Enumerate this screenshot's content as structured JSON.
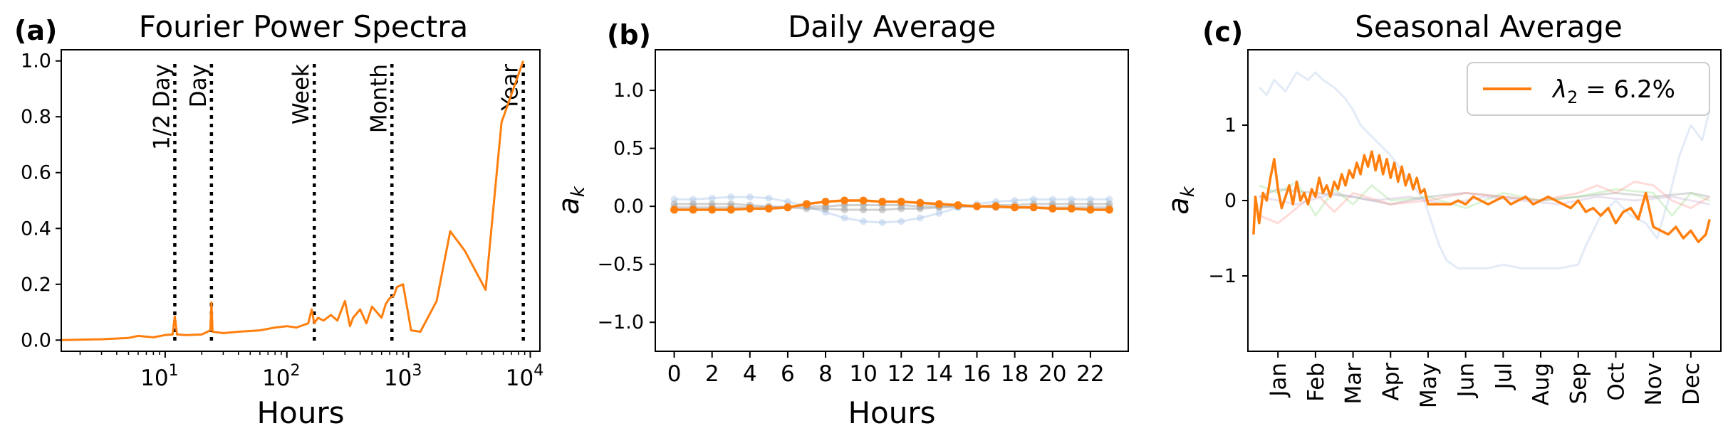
{
  "colors": {
    "orange": "#ff7f0e",
    "accent_orange": "#f4741b",
    "faint_blue": "#aec7e8",
    "faint_gray": "#9a9a9a",
    "faint_green": "#98df8a",
    "faint_red": "#ff9896",
    "faint_purple": "#c5b0d5"
  },
  "chart_data": [
    {
      "type": "line",
      "panel_label": "(a)",
      "title": "Fourier Power Spectra",
      "xlabel": "Hours",
      "ylabel": "",
      "xscale": "log",
      "xlim": [
        1.4,
        12000
      ],
      "ylim": [
        -0.04,
        1.04
      ],
      "xticks": [
        10,
        100,
        1000,
        10000
      ],
      "xtick_labels": [
        {
          "base": "10",
          "exp": "1"
        },
        {
          "base": "10",
          "exp": "2"
        },
        {
          "base": "10",
          "exp": "3"
        },
        {
          "base": "10",
          "exp": "4"
        }
      ],
      "yticks": [
        0,
        0.2,
        0.4,
        0.6,
        0.8,
        1.0
      ],
      "ytick_labels": [
        "0.0",
        "0.2",
        "0.4",
        "0.6",
        "0.8",
        "1.0"
      ],
      "markers": [
        {
          "label": "1/2 Day",
          "x": 12
        },
        {
          "label": "Day",
          "x": 24
        },
        {
          "label": "Week",
          "x": 168
        },
        {
          "label": "Month",
          "x": 730
        },
        {
          "label": "Year",
          "x": 8760
        }
      ],
      "series": [
        {
          "x": [
            1.4,
            3,
            5,
            6,
            8,
            10,
            11.5,
            12,
            12.5,
            15,
            20,
            23.5,
            24,
            24.5,
            30,
            40,
            60,
            80,
            100,
            120,
            150,
            160,
            168,
            180,
            200,
            230,
            260,
            300,
            330,
            350,
            400,
            450,
            500,
            600,
            650,
            700,
            760,
            800,
            900,
            1050,
            1250,
            1700,
            2200,
            2900,
            4300,
            5800,
            8760
          ],
          "y": [
            0.0,
            0.003,
            0.008,
            0.015,
            0.01,
            0.018,
            0.02,
            0.085,
            0.02,
            0.018,
            0.02,
            0.035,
            0.135,
            0.03,
            0.025,
            0.03,
            0.035,
            0.045,
            0.05,
            0.045,
            0.06,
            0.11,
            0.06,
            0.08,
            0.07,
            0.09,
            0.07,
            0.14,
            0.05,
            0.08,
            0.11,
            0.06,
            0.12,
            0.08,
            0.13,
            0.15,
            0.16,
            0.19,
            0.2,
            0.035,
            0.03,
            0.14,
            0.39,
            0.32,
            0.18,
            0.78,
            1.0
          ]
        }
      ]
    },
    {
      "type": "line",
      "panel_label": "(b)",
      "title": "Daily Average",
      "xlabel": "Hours",
      "ylabel": "a_k",
      "ylabel_base": "a",
      "ylabel_sub": "k",
      "xlim": [
        -1,
        24
      ],
      "ylim": [
        -1.25,
        1.35
      ],
      "xticks": [
        0,
        2,
        4,
        6,
        8,
        10,
        12,
        14,
        16,
        18,
        20,
        22
      ],
      "xtick_labels": [
        "0",
        "2",
        "4",
        "6",
        "8",
        "10",
        "12",
        "14",
        "16",
        "18",
        "20",
        "22"
      ],
      "yticks": [
        -1.0,
        -0.5,
        0.0,
        0.5,
        1.0
      ],
      "ytick_labels": [
        "−1.0",
        "−0.5",
        "0.0",
        "0.5",
        "1.0"
      ],
      "x": [
        0,
        1,
        2,
        3,
        4,
        5,
        6,
        7,
        8,
        9,
        10,
        11,
        12,
        13,
        14,
        15,
        16,
        17,
        18,
        19,
        20,
        21,
        22,
        23
      ],
      "series": [
        {
          "color_key": "faint_blue",
          "values": [
            0.06,
            0.06,
            0.07,
            0.08,
            0.08,
            0.07,
            0.04,
            0.0,
            -0.05,
            -0.1,
            -0.13,
            -0.14,
            -0.13,
            -0.1,
            -0.06,
            -0.01,
            0.02,
            0.04,
            0.05,
            0.06,
            0.06,
            0.06,
            0.06,
            0.06
          ]
        },
        {
          "color_key": "faint_gray",
          "values": [
            0.02,
            0.02,
            0.02,
            0.02,
            0.01,
            0.0,
            -0.01,
            -0.02,
            -0.02,
            -0.03,
            -0.03,
            -0.03,
            -0.02,
            -0.02,
            -0.01,
            0.0,
            0.0,
            0.01,
            0.01,
            0.02,
            0.02,
            0.02,
            0.02,
            0.02
          ]
        },
        {
          "color_key": "faint_gray",
          "values": [
            -0.01,
            -0.01,
            -0.01,
            -0.01,
            -0.01,
            -0.01,
            0.0,
            0.0,
            0.0,
            0.01,
            0.01,
            0.01,
            0.01,
            0.0,
            0.0,
            0.0,
            0.0,
            -0.01,
            -0.01,
            -0.01,
            -0.01,
            -0.01,
            -0.01,
            -0.01
          ]
        },
        {
          "color_key": "orange",
          "values": [
            -0.03,
            -0.03,
            -0.03,
            -0.03,
            -0.02,
            -0.02,
            -0.01,
            0.02,
            0.04,
            0.05,
            0.05,
            0.04,
            0.04,
            0.03,
            0.02,
            0.01,
            0.0,
            0.0,
            -0.01,
            -0.01,
            -0.02,
            -0.02,
            -0.03,
            -0.03
          ]
        }
      ]
    },
    {
      "type": "line",
      "panel_label": "(c)",
      "title": "Seasonal Average",
      "xlabel": "",
      "ylabel": "a_k",
      "ylabel_base": "a",
      "ylabel_sub": "k",
      "xlim": [
        -0.8,
        11.8
      ],
      "ylim": [
        -2.0,
        2.0
      ],
      "xticks": [
        0,
        1,
        2,
        3,
        4,
        5,
        6,
        7,
        8,
        9,
        10,
        11
      ],
      "xtick_labels": [
        "Jan",
        "Feb",
        "Mar",
        "Apr",
        "May",
        "Jun",
        "Jul",
        "Aug",
        "Sep",
        "Oct",
        "Nov",
        "Dec"
      ],
      "yticks": [
        -1,
        0,
        1
      ],
      "ytick_labels": [
        "−1",
        "0",
        "1"
      ],
      "legend": {
        "placement": "top-right",
        "label_base": "λ",
        "label_sub": "2",
        "label_rest": " = 6.2%"
      },
      "series": [
        {
          "color_key": "faint_blue",
          "x": [
            -0.5,
            -0.3,
            -0.1,
            0.2,
            0.5,
            0.8,
            1.0,
            1.2,
            1.5,
            1.8,
            2.0,
            2.2,
            2.6,
            3.0,
            3.3,
            3.6,
            3.9,
            4.1,
            4.3,
            4.5,
            4.8,
            5.2,
            5.6,
            6.0,
            6.5,
            7.0,
            7.5,
            8.0,
            8.2,
            8.6,
            9.0,
            9.4,
            9.8,
            10.1,
            10.4,
            10.7,
            11.0,
            11.3,
            11.5
          ],
          "values": [
            1.5,
            1.4,
            1.6,
            1.45,
            1.7,
            1.6,
            1.7,
            1.6,
            1.5,
            1.35,
            1.2,
            1.0,
            0.8,
            0.6,
            0.4,
            0.2,
            0.0,
            -0.3,
            -0.6,
            -0.8,
            -0.9,
            -0.9,
            -0.9,
            -0.85,
            -0.9,
            -0.9,
            -0.9,
            -0.85,
            -0.6,
            -0.2,
            0.0,
            -0.2,
            -0.3,
            -0.5,
            0.0,
            0.6,
            1.0,
            0.8,
            1.2
          ]
        },
        {
          "color_key": "faint_gray",
          "x": [
            -0.5,
            0.0,
            1.0,
            2.0,
            3.0,
            4.0,
            5.0,
            6.0,
            7.0,
            8.0,
            9.0,
            10.0,
            11.0,
            11.5
          ],
          "values": [
            0.05,
            0.15,
            0.1,
            0.05,
            -0.05,
            0.05,
            0.1,
            0.05,
            0.0,
            0.05,
            0.1,
            0.05,
            0.1,
            0.05
          ]
        },
        {
          "color_key": "faint_green",
          "x": [
            -0.5,
            0.0,
            0.5,
            1.0,
            1.5,
            2.0,
            2.5,
            3.0,
            4.0,
            5.0,
            6.0,
            7.0,
            8.0,
            9.0,
            10.0,
            10.5,
            11.0,
            11.5
          ],
          "values": [
            0.2,
            0.1,
            0.25,
            -0.2,
            0.15,
            -0.05,
            0.2,
            0.0,
            0.05,
            -0.1,
            0.1,
            0.0,
            0.05,
            0.15,
            0.1,
            -0.2,
            0.1,
            0.0
          ]
        },
        {
          "color_key": "faint_red",
          "x": [
            -0.5,
            0.0,
            0.5,
            1.0,
            1.5,
            2.0,
            3.0,
            4.0,
            5.0,
            6.0,
            7.0,
            8.0,
            8.5,
            9.0,
            9.5,
            10.0,
            10.5,
            11.0,
            11.5
          ],
          "values": [
            -0.2,
            -0.3,
            -0.1,
            0.1,
            -0.15,
            0.1,
            -0.05,
            0.0,
            0.1,
            0.05,
            0.0,
            0.1,
            0.2,
            0.1,
            0.25,
            0.2,
            0.0,
            -0.1,
            0.05
          ]
        },
        {
          "color_key": "faint_purple",
          "x": [
            -0.5,
            0.5,
            1.5,
            2.5,
            3.5,
            4.5,
            5.5,
            6.5,
            7.5,
            8.5,
            9.5,
            10.5,
            11.5
          ],
          "values": [
            0.05,
            -0.05,
            0.1,
            0.0,
            0.05,
            -0.05,
            0.05,
            0.0,
            -0.05,
            0.05,
            0.0,
            0.05,
            -0.05
          ]
        },
        {
          "color_key": "orange",
          "x": [
            -0.65,
            -0.6,
            -0.5,
            -0.4,
            -0.3,
            -0.2,
            -0.1,
            0.0,
            0.1,
            0.2,
            0.3,
            0.4,
            0.5,
            0.6,
            0.7,
            0.8,
            0.9,
            1.0,
            1.1,
            1.2,
            1.3,
            1.4,
            1.5,
            1.6,
            1.7,
            1.8,
            1.9,
            2.0,
            2.1,
            2.2,
            2.3,
            2.4,
            2.5,
            2.6,
            2.7,
            2.8,
            2.9,
            3.0,
            3.1,
            3.2,
            3.3,
            3.4,
            3.5,
            3.6,
            3.7,
            3.8,
            3.9,
            4.0,
            4.2,
            4.4,
            4.6,
            4.8,
            5.0,
            5.2,
            5.4,
            5.6,
            5.8,
            6.0,
            6.2,
            6.4,
            6.6,
            6.8,
            7.0,
            7.2,
            7.4,
            7.6,
            7.8,
            8.0,
            8.2,
            8.4,
            8.6,
            8.8,
            9.0,
            9.2,
            9.4,
            9.6,
            9.8,
            10.0,
            10.2,
            10.4,
            10.6,
            10.8,
            11.0,
            11.2,
            11.4,
            11.5
          ],
          "values": [
            -0.45,
            0.05,
            -0.3,
            0.1,
            0.0,
            0.3,
            0.55,
            0.15,
            -0.1,
            0.05,
            0.2,
            -0.05,
            0.25,
            0.0,
            0.1,
            -0.05,
            0.15,
            0.05,
            0.3,
            0.1,
            0.2,
            0.05,
            0.25,
            0.15,
            0.35,
            0.2,
            0.4,
            0.3,
            0.5,
            0.35,
            0.6,
            0.45,
            0.65,
            0.4,
            0.6,
            0.35,
            0.55,
            0.3,
            0.5,
            0.25,
            0.45,
            0.2,
            0.35,
            0.15,
            0.3,
            0.1,
            0.15,
            -0.05,
            -0.05,
            -0.05,
            -0.05,
            0.0,
            -0.05,
            0.05,
            0.0,
            -0.05,
            0.0,
            0.05,
            -0.05,
            0.0,
            0.05,
            -0.05,
            0.0,
            0.05,
            0.0,
            -0.05,
            -0.1,
            0.0,
            -0.15,
            -0.1,
            -0.2,
            -0.1,
            -0.3,
            -0.15,
            -0.1,
            -0.25,
            0.1,
            -0.35,
            -0.4,
            -0.45,
            -0.35,
            -0.5,
            -0.4,
            -0.55,
            -0.45,
            -0.25
          ]
        }
      ]
    }
  ]
}
